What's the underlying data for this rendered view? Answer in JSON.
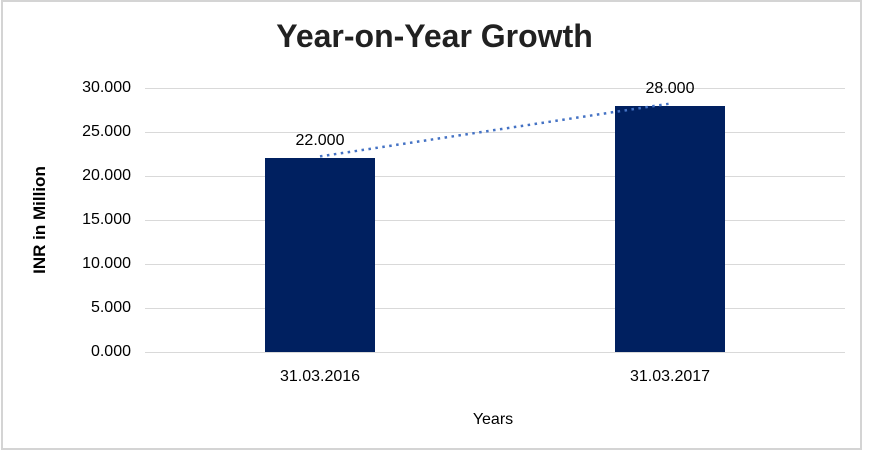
{
  "chart_data": {
    "type": "bar",
    "title": "Year-on-Year Growth",
    "xlabel": "Years",
    "ylabel": "INR in Million",
    "categories": [
      "31.03.2016",
      "31.03.2017"
    ],
    "values": [
      22,
      28
    ],
    "data_labels": [
      "22.000",
      "28.000"
    ],
    "y_ticks": [
      {
        "value": 0,
        "label": "0.000"
      },
      {
        "value": 5,
        "label": "5.000"
      },
      {
        "value": 10,
        "label": "10.000"
      },
      {
        "value": 15,
        "label": "15.000"
      },
      {
        "value": 20,
        "label": "20.000"
      },
      {
        "value": 25,
        "label": "25.000"
      },
      {
        "value": 30,
        "label": "30.000"
      }
    ],
    "ylim": [
      0,
      30
    ],
    "grid": "horizontal",
    "legend": "none",
    "trendline": {
      "style": "dotted",
      "connects": [
        22,
        28
      ]
    },
    "colors": {
      "bar": "#002060",
      "trendline": "#4472C4",
      "gridline": "#D9D9D9",
      "frame_border": "#D4D4D4",
      "title_text": "#212121",
      "axis_text": "#000000",
      "background": "#FFFFFF"
    }
  }
}
